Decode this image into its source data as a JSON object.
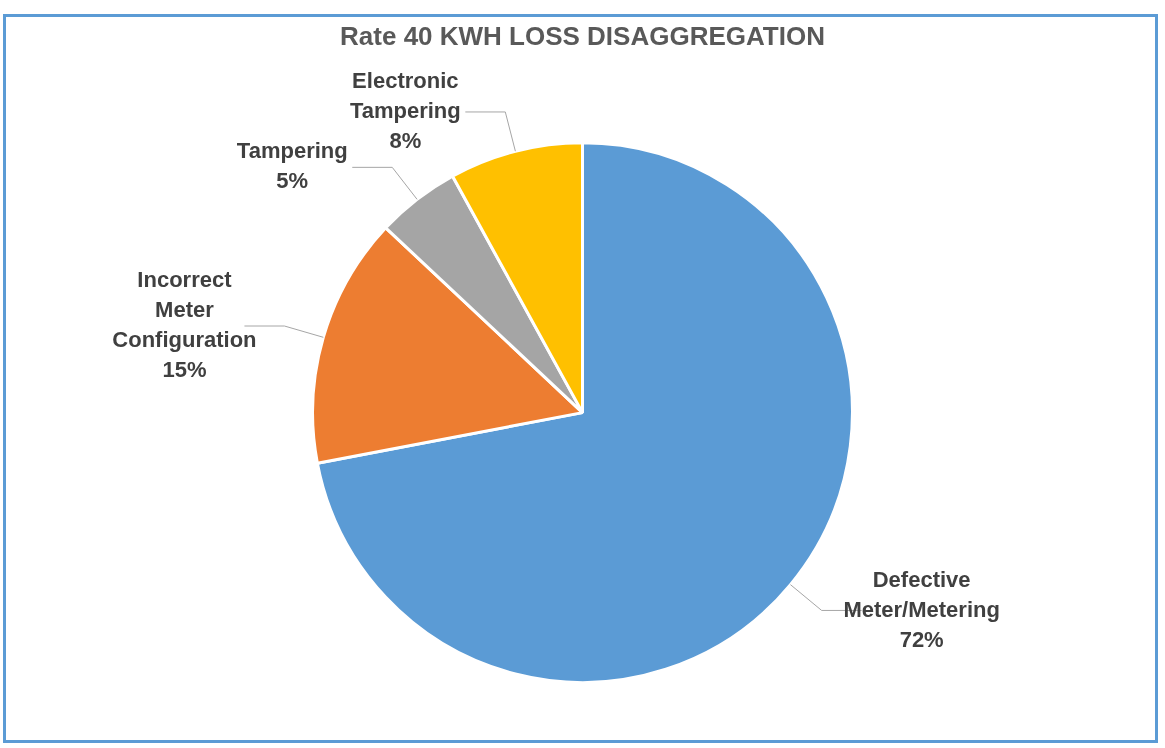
{
  "chart_data": {
    "type": "pie",
    "title": "Rate 40 KWH LOSS DISAGGREGATION",
    "categories": [
      "Defective Meter/Metering",
      "Incorrect Meter Configuration",
      "Tampering",
      "Electronic Tampering"
    ],
    "values": [
      72,
      15,
      5,
      8
    ],
    "colors": [
      "#5b9bd5",
      "#ed7d31",
      "#a5a5a5",
      "#ffc000"
    ],
    "value_labels": [
      "72%",
      "15%",
      "5%",
      "8%"
    ],
    "legend": false
  }
}
